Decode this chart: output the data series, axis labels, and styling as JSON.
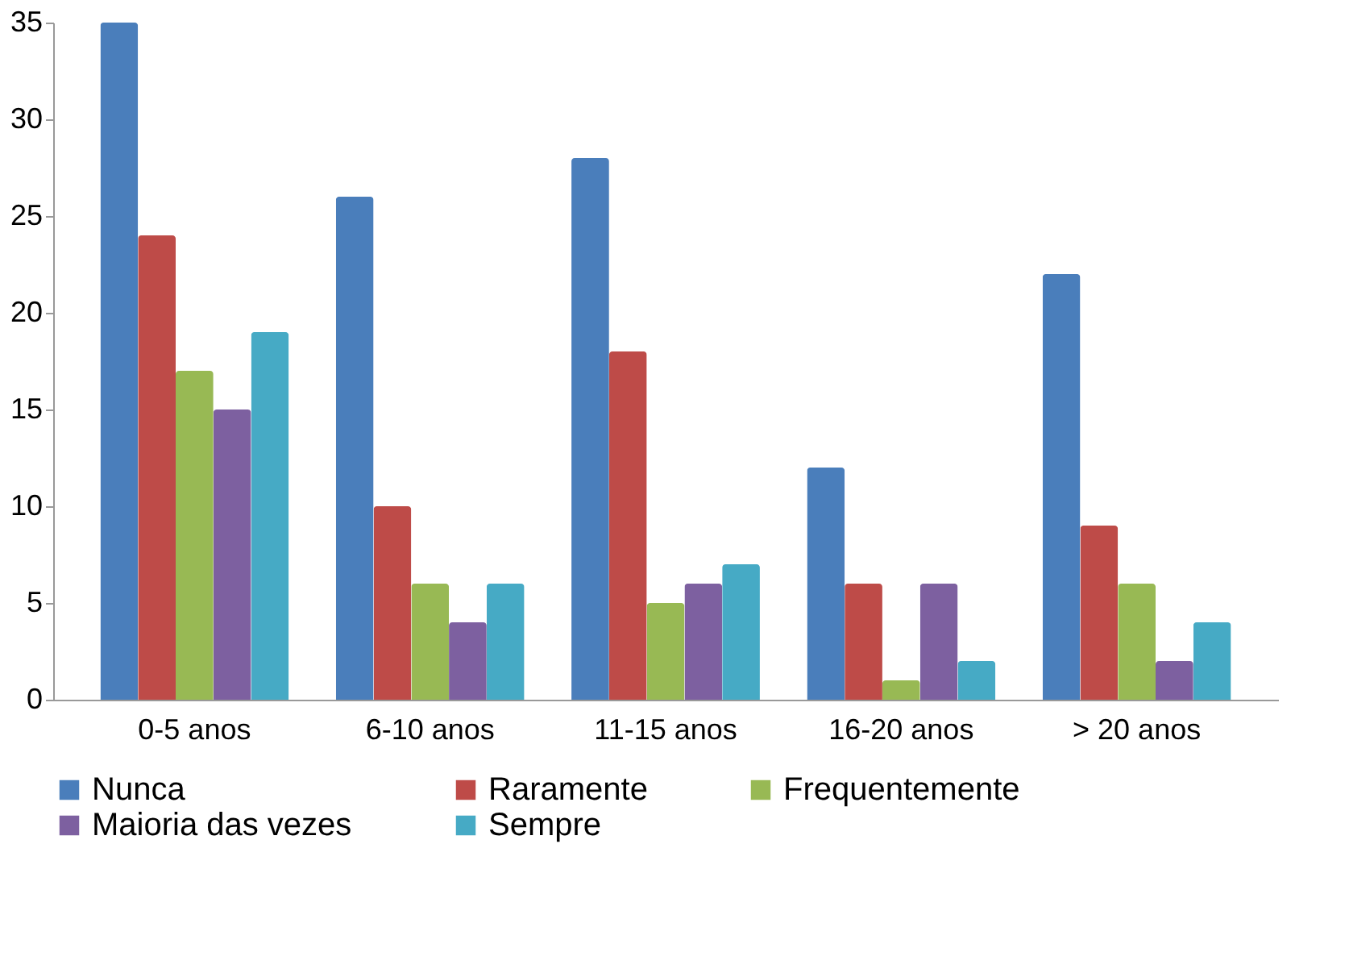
{
  "chart_data": {
    "type": "bar",
    "categories": [
      "0-5 anos",
      "6-10 anos",
      "11-15 anos",
      "16-20 anos",
      "> 20 anos"
    ],
    "series": [
      {
        "name": "Nunca",
        "color": "#4a7ebb",
        "values": [
          35,
          26,
          28,
          12,
          22
        ]
      },
      {
        "name": "Raramente",
        "color": "#be4b48",
        "values": [
          24,
          10,
          18,
          6,
          9
        ]
      },
      {
        "name": "Frequentemente",
        "color": "#98b954",
        "values": [
          17,
          6,
          5,
          1,
          6
        ]
      },
      {
        "name": "Maioria das vezes",
        "color": "#7d60a0",
        "values": [
          15,
          4,
          6,
          6,
          2
        ]
      },
      {
        "name": "Sempre",
        "color": "#46aac5",
        "values": [
          19,
          6,
          7,
          2,
          4
        ]
      }
    ],
    "ylim": [
      0,
      35
    ],
    "yticks": [
      0,
      5,
      10,
      15,
      20,
      25,
      30,
      35
    ],
    "grid": false,
    "legend": "bottom"
  }
}
